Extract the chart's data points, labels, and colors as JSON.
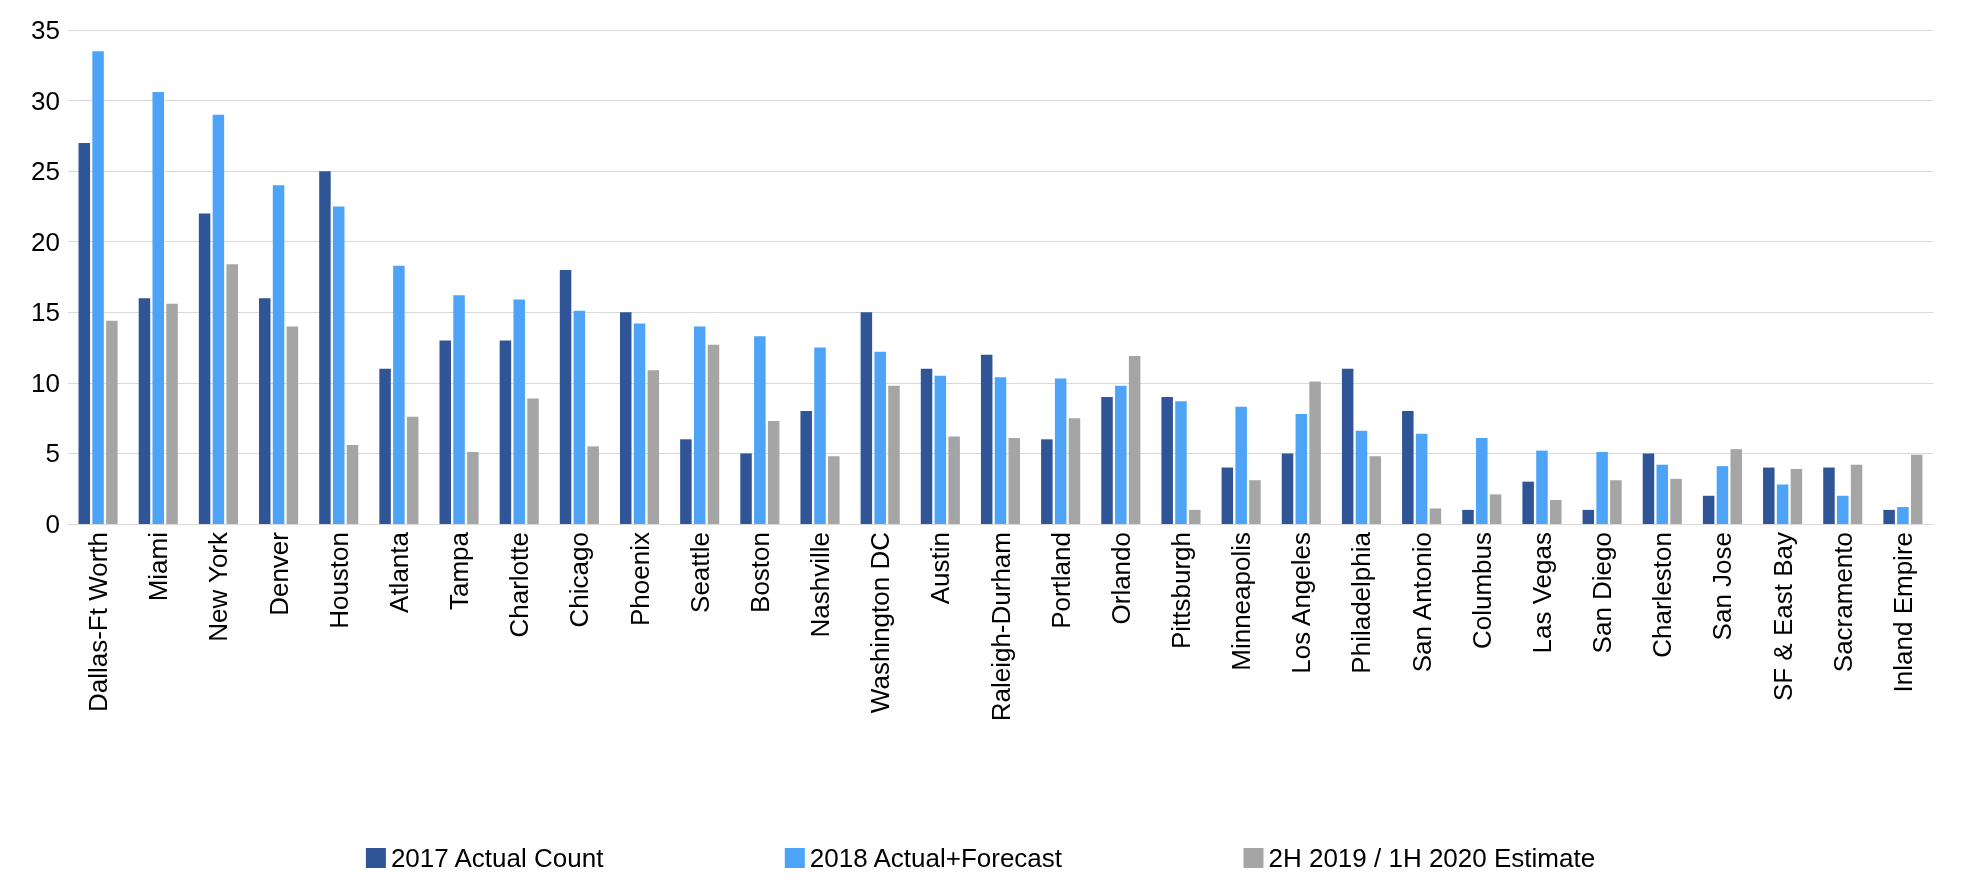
{
  "chart_data": {
    "type": "bar",
    "categories": [
      "Dallas-Ft Worth",
      "Miami",
      "New York",
      "Denver",
      "Houston",
      "Atlanta",
      "Tampa",
      "Charlotte",
      "Chicago",
      "Phoenix",
      "Seattle",
      "Boston",
      "Nashville",
      "Washington DC",
      "Austin",
      "Raleigh-Durham",
      "Portland",
      "Orlando",
      "Pittsburgh",
      "Minneapolis",
      "Los Angeles",
      "Philadelphia",
      "San Antonio",
      "Columbus",
      "Las Vegas",
      "San Diego",
      "Charleston",
      "San Jose",
      "SF & East Bay",
      "Sacramento",
      "Inland Empire"
    ],
    "series": [
      {
        "name": "2017 Actual Count",
        "color": "#2f5597",
        "values": [
          27,
          16,
          22,
          16,
          25,
          11,
          13,
          13,
          18,
          15,
          6,
          5,
          8,
          15,
          11,
          12,
          6,
          9,
          9,
          4,
          5,
          11,
          8,
          1,
          3,
          1,
          5,
          2,
          4,
          4,
          1
        ]
      },
      {
        "name": "2018 Actual+Forecast",
        "color": "#4da3f5",
        "values": [
          33.5,
          30.6,
          29,
          24,
          22.5,
          18.3,
          16.2,
          15.9,
          15.1,
          14.2,
          14,
          13.3,
          12.5,
          12.2,
          10.5,
          10.4,
          10.3,
          9.8,
          8.7,
          8.3,
          7.8,
          6.6,
          6.4,
          6.1,
          5.2,
          5.1,
          4.2,
          4.1,
          2.8,
          2,
          1.2
        ]
      },
      {
        "name": "2H 2019 / 1H 2020 Estimate",
        "color": "#a5a5a5",
        "values": [
          14.4,
          15.6,
          18.4,
          14,
          5.6,
          7.6,
          5.1,
          8.9,
          5.5,
          10.9,
          12.7,
          7.3,
          4.8,
          9.8,
          6.2,
          6.1,
          7.5,
          11.9,
          1,
          3.1,
          10.1,
          4.8,
          1.1,
          2.1,
          1.7,
          3.1,
          3.2,
          5.3,
          3.9,
          4.2,
          4.9
        ]
      }
    ],
    "ylim": [
      0,
      35
    ],
    "yticks": [
      0,
      5,
      10,
      15,
      20,
      25,
      30,
      35
    ],
    "grid": "y",
    "legend": "bottom"
  }
}
